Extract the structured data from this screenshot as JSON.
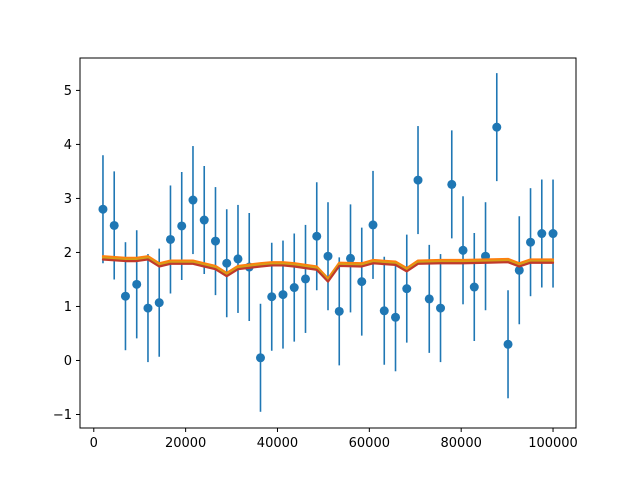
{
  "chart_data": {
    "type": "scatter",
    "title": "",
    "xlabel": "",
    "ylabel": "",
    "xlim": [
      -3000,
      105000
    ],
    "ylim": [
      -1.25,
      5.6
    ],
    "grid": false,
    "legend": "none",
    "x_ticks": [
      {
        "value": 0,
        "label": "0"
      },
      {
        "value": 20000,
        "label": "20000"
      },
      {
        "value": 40000,
        "label": "40000"
      },
      {
        "value": 60000,
        "label": "60000"
      },
      {
        "value": 80000,
        "label": "80000"
      },
      {
        "value": 100000,
        "label": "100000"
      }
    ],
    "y_ticks": [
      {
        "value": -1,
        "label": "−1"
      },
      {
        "value": 0,
        "label": "0"
      },
      {
        "value": 1,
        "label": "1"
      },
      {
        "value": 2,
        "label": "2"
      },
      {
        "value": 3,
        "label": "3"
      },
      {
        "value": 4,
        "label": "4"
      },
      {
        "value": 5,
        "label": "5"
      }
    ],
    "series": [
      {
        "kind": "errorbar",
        "color": "#1f77b4",
        "error": 1.0,
        "points": [
          [
            2000,
            2.8
          ],
          [
            4450,
            2.5
          ],
          [
            6900,
            1.19
          ],
          [
            9350,
            1.41
          ],
          [
            11800,
            0.97
          ],
          [
            14250,
            1.07
          ],
          [
            16700,
            2.24
          ],
          [
            19150,
            2.49
          ],
          [
            21600,
            2.97
          ],
          [
            24050,
            2.6
          ],
          [
            26500,
            2.21
          ],
          [
            28950,
            1.8
          ],
          [
            31400,
            1.88
          ],
          [
            33850,
            1.73
          ],
          [
            36300,
            0.05
          ],
          [
            38750,
            1.18
          ],
          [
            41200,
            1.22
          ],
          [
            43650,
            1.35
          ],
          [
            46100,
            1.51
          ],
          [
            48550,
            2.3
          ],
          [
            51000,
            1.93
          ],
          [
            53450,
            0.91
          ],
          [
            55900,
            1.89
          ],
          [
            58350,
            1.46
          ],
          [
            60800,
            2.51
          ],
          [
            63250,
            0.92
          ],
          [
            65700,
            0.8
          ],
          [
            68150,
            1.33
          ],
          [
            70600,
            3.34
          ],
          [
            73050,
            1.14
          ],
          [
            75500,
            0.97
          ],
          [
            77950,
            3.26
          ],
          [
            80400,
            2.04
          ],
          [
            82850,
            1.36
          ],
          [
            85300,
            1.93
          ],
          [
            87750,
            4.32
          ],
          [
            90200,
            0.3
          ],
          [
            92650,
            1.67
          ],
          [
            95100,
            2.19
          ],
          [
            97550,
            2.35
          ],
          [
            100000,
            2.35
          ]
        ]
      },
      {
        "kind": "line",
        "color": "#ff7f0e",
        "x": [
          2000,
          6900,
          9350,
          11800,
          14250,
          16700,
          21600,
          24050,
          26500,
          28950,
          31400,
          36300,
          38750,
          41200,
          43650,
          48550,
          51000,
          53450,
          58350,
          60800,
          65700,
          68150,
          70600,
          75500,
          80400,
          85300,
          90200,
          92650,
          95100,
          97550,
          100000
        ],
        "y": [
          1.93,
          1.9,
          1.9,
          1.93,
          1.8,
          1.85,
          1.85,
          1.8,
          1.75,
          1.62,
          1.75,
          1.8,
          1.82,
          1.82,
          1.8,
          1.74,
          1.52,
          1.81,
          1.8,
          1.86,
          1.83,
          1.71,
          1.85,
          1.86,
          1.86,
          1.87,
          1.88,
          1.8,
          1.87,
          1.87,
          1.87
        ]
      },
      {
        "kind": "line",
        "color": "#d4a017",
        "x": [
          2000,
          6900,
          9350,
          11800,
          14250,
          16700,
          21600,
          24050,
          26500,
          28950,
          31400,
          36300,
          38750,
          41200,
          43650,
          48550,
          51000,
          53450,
          58350,
          60800,
          65700,
          68150,
          70600,
          75500,
          80400,
          85300,
          90200,
          92650,
          95100,
          97550,
          100000
        ],
        "y": [
          1.9,
          1.87,
          1.87,
          1.9,
          1.77,
          1.82,
          1.82,
          1.77,
          1.72,
          1.59,
          1.72,
          1.77,
          1.79,
          1.79,
          1.77,
          1.71,
          1.49,
          1.78,
          1.77,
          1.83,
          1.8,
          1.68,
          1.82,
          1.83,
          1.83,
          1.84,
          1.85,
          1.77,
          1.84,
          1.84,
          1.84
        ]
      },
      {
        "kind": "line",
        "color": "#c0392b",
        "x": [
          2000,
          6900,
          9350,
          11800,
          14250,
          16700,
          21600,
          24050,
          26500,
          28950,
          31400,
          36300,
          38750,
          41200,
          43650,
          48550,
          51000,
          53450,
          58350,
          60800,
          65700,
          68150,
          70600,
          75500,
          80400,
          85300,
          90200,
          92650,
          95100,
          97550,
          100000
        ],
        "y": [
          1.87,
          1.84,
          1.84,
          1.87,
          1.74,
          1.79,
          1.79,
          1.74,
          1.69,
          1.56,
          1.69,
          1.74,
          1.76,
          1.76,
          1.74,
          1.68,
          1.46,
          1.75,
          1.74,
          1.8,
          1.77,
          1.65,
          1.79,
          1.8,
          1.8,
          1.81,
          1.82,
          1.74,
          1.81,
          1.81,
          1.81
        ]
      }
    ]
  }
}
